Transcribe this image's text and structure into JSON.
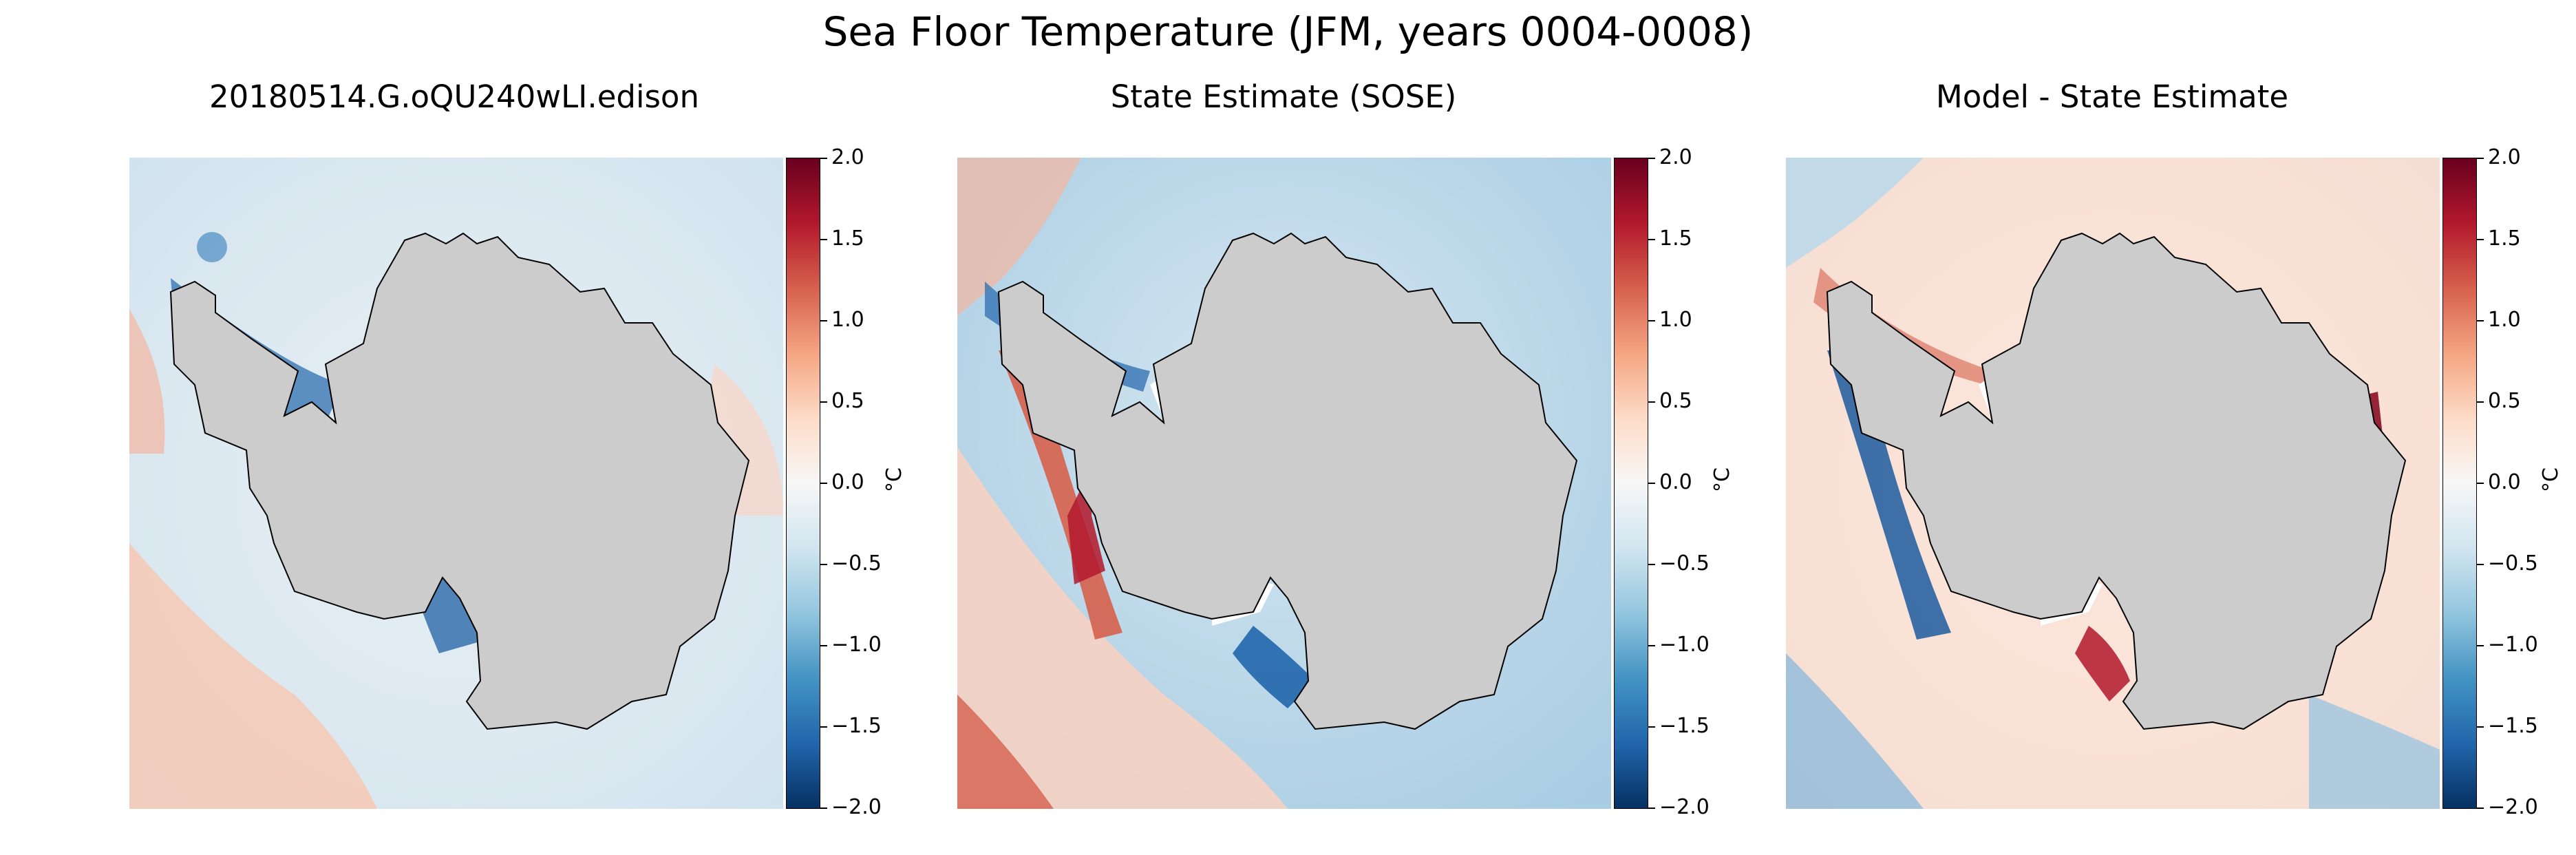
{
  "figure": {
    "title": "Sea Floor Temperature (JFM, years 0004-0008)"
  },
  "panels": [
    {
      "title": "20180514.G.oQU240wLI.edison",
      "field": "model"
    },
    {
      "title": "State Estimate (SOSE)",
      "field": "observations"
    },
    {
      "title": "Model - State Estimate",
      "field": "difference"
    }
  ],
  "colorbar": {
    "label": "°C",
    "colormap": "RdBu_r",
    "range": [
      -2.0,
      2.0
    ],
    "ticks": [
      "2.0",
      "1.5",
      "1.0",
      "0.5",
      "0.0",
      "−0.5",
      "−1.0",
      "−1.5",
      "−2.0"
    ],
    "colors": [
      "#053061",
      "#2166ac",
      "#4393c3",
      "#92c5de",
      "#d1e5f0",
      "#f7f7f7",
      "#fddbc7",
      "#f4a582",
      "#d6604d",
      "#b2182b",
      "#67001f"
    ]
  },
  "colors": {
    "land": "#cccccc",
    "coastline": "#000000"
  }
}
